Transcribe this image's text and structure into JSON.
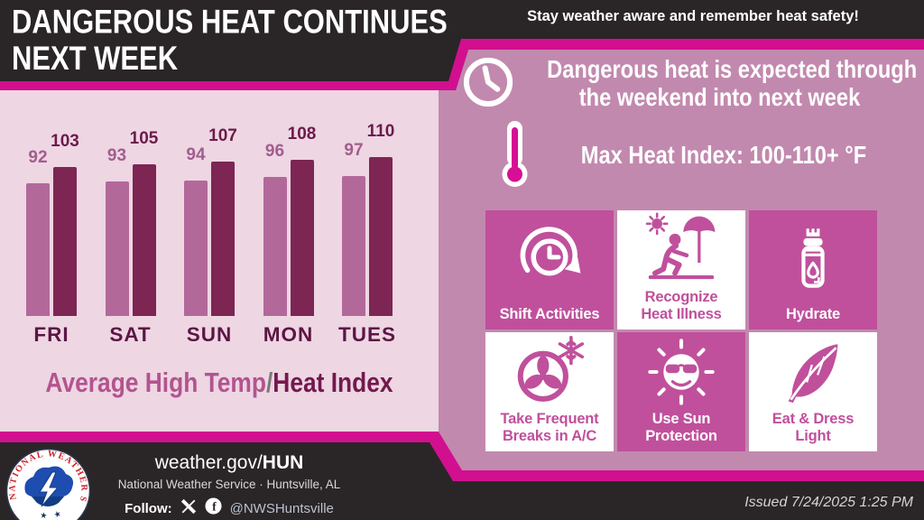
{
  "header": {
    "title_line1": "DANGEROUS HEAT CONTINUES",
    "title_line2": "NEXT WEEK",
    "tagline": "Stay weather aware and remember heat safety!"
  },
  "alert": {
    "heading_line1": "Dangerous heat is expected through",
    "heading_line2": "the weekend into next week",
    "max_heat_label": "Max Heat Index: 100-110+ °F"
  },
  "chart_data": {
    "type": "bar",
    "title": "Average High Temp/Heat Index",
    "title_parts": {
      "left": "Average High Temp",
      "separator": "/",
      "right": "Heat Index"
    },
    "categories": [
      "FRI",
      "SAT",
      "SUN",
      "MON",
      "TUES"
    ],
    "series": [
      {
        "name": "Average High Temp",
        "color": "#b3689a",
        "label_color": "#a25d8e",
        "values": [
          92,
          93,
          94,
          96,
          97
        ]
      },
      {
        "name": "Heat Index",
        "color": "#7d2553",
        "label_color": "#6b1b4b",
        "values": [
          103,
          105,
          107,
          108,
          110
        ]
      }
    ],
    "unit": "°F",
    "ylim": [
      0,
      156
    ],
    "grid": false,
    "legend": "none (title doubles as legend)"
  },
  "safety_tiles": [
    {
      "label": "Shift Activities",
      "icon": "shift-clock-icon",
      "variant": "solid"
    },
    {
      "label": "Recognize\nHeat Illness",
      "icon": "heat-illness-icon",
      "variant": "light"
    },
    {
      "label": "Hydrate",
      "icon": "water-bottle-icon",
      "variant": "solid"
    },
    {
      "label": "Take Frequent\nBreaks in A/C",
      "icon": "ac-fan-icon",
      "variant": "light"
    },
    {
      "label": "Use Sun\nProtection",
      "icon": "sun-protection-icon",
      "variant": "solid"
    },
    {
      "label": "Eat & Dress\nLight",
      "icon": "feather-icon",
      "variant": "light"
    }
  ],
  "footer": {
    "logo_text": "NATIONAL WEATHER SERVICE",
    "website_prefix": "weather.gov/",
    "website_id": "HUN",
    "office": "National Weather Service · Huntsville, AL",
    "follow_label": "Follow:",
    "social_handle": "@NWSHuntsville",
    "issued": "Issued 7/24/2025 1:25 PM"
  },
  "colors": {
    "header_bg": "#2a2527",
    "accent_magenta": "#d20f8f",
    "panel_pink": "#eed6e3",
    "panel_mauve": "#c289ae",
    "tile_magenta": "#c0509c",
    "day_label": "#5c1544",
    "title_left_color": "#b3548f",
    "title_right_color": "#74194d",
    "slash_color": "#7a7a7a",
    "thermo_fill": "#d60f93"
  }
}
